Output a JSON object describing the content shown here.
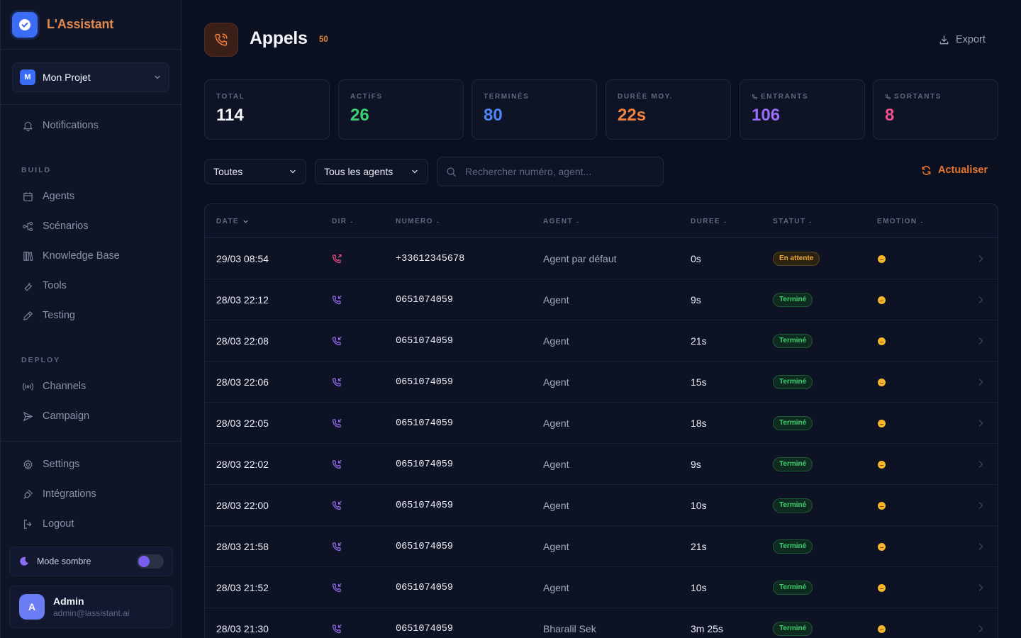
{
  "brand": {
    "name": "L'Assistant"
  },
  "project": {
    "badge": "M",
    "name": "Mon Projet"
  },
  "nav": {
    "notifications": "Notifications",
    "build_title": "BUILD",
    "build": [
      {
        "label": "Agents",
        "icon": "calendar-bot-icon"
      },
      {
        "label": "Scénarios",
        "icon": "flow-icon"
      },
      {
        "label": "Knowledge Base",
        "icon": "library-icon"
      },
      {
        "label": "Tools",
        "icon": "wrench-icon"
      },
      {
        "label": "Testing",
        "icon": "pencil-icon"
      }
    ],
    "deploy_title": "DEPLOY",
    "deploy": [
      {
        "label": "Channels",
        "icon": "broadcast-icon"
      },
      {
        "label": "Campaign",
        "icon": "send-icon"
      }
    ],
    "bottom": [
      {
        "label": "Settings",
        "icon": "gear-icon"
      },
      {
        "label": "Intégrations",
        "icon": "plug-icon"
      },
      {
        "label": "Logout",
        "icon": "logout-icon"
      }
    ]
  },
  "mode": {
    "label": "Mode sombre",
    "enabled": true
  },
  "user": {
    "initial": "A",
    "name": "Admin",
    "email": "admin@lassistant.ai"
  },
  "page": {
    "title": "Appels",
    "count": "50",
    "export_label": "Export"
  },
  "stats": [
    {
      "label": "TOTAL",
      "value": "114",
      "color": "#f4f6fb"
    },
    {
      "label": "ACTIFS",
      "value": "26",
      "color": "#3fcf73"
    },
    {
      "label": "TERMINÉS",
      "value": "80",
      "color": "#4f86f7"
    },
    {
      "label": "DURÉE MOY.",
      "value": "22s",
      "color": "#f0803a"
    },
    {
      "label": "ENTRANTS",
      "value": "106",
      "color": "#9b6cf5"
    },
    {
      "label": "SORTANTS",
      "value": "8",
      "color": "#f0508a"
    }
  ],
  "filters": {
    "status_value": "Toutes",
    "agent_value": "Tous les agents",
    "search_placeholder": "Rechercher numéro, agent...",
    "refresh_label": "Actualiser"
  },
  "table": {
    "columns": [
      "DATE",
      "DIR",
      "NUMERO",
      "AGENT",
      "DUREE",
      "STATUT",
      "EMOTION"
    ],
    "rows": [
      {
        "date": "29/03 08:54",
        "dir": "outgoing",
        "numero": "+33612345678",
        "agent": "Agent par défaut",
        "duree": "0s",
        "statut": "En attente",
        "emotion": "neutral"
      },
      {
        "date": "28/03 22:12",
        "dir": "incoming",
        "numero": "0651074059",
        "agent": "Agent",
        "duree": "9s",
        "statut": "Terminé",
        "emotion": "neutral"
      },
      {
        "date": "28/03 22:08",
        "dir": "incoming",
        "numero": "0651074059",
        "agent": "Agent",
        "duree": "21s",
        "statut": "Terminé",
        "emotion": "neutral"
      },
      {
        "date": "28/03 22:06",
        "dir": "incoming",
        "numero": "0651074059",
        "agent": "Agent",
        "duree": "15s",
        "statut": "Terminé",
        "emotion": "neutral"
      },
      {
        "date": "28/03 22:05",
        "dir": "incoming",
        "numero": "0651074059",
        "agent": "Agent",
        "duree": "18s",
        "statut": "Terminé",
        "emotion": "neutral"
      },
      {
        "date": "28/03 22:02",
        "dir": "incoming",
        "numero": "0651074059",
        "agent": "Agent",
        "duree": "9s",
        "statut": "Terminé",
        "emotion": "neutral"
      },
      {
        "date": "28/03 22:00",
        "dir": "incoming",
        "numero": "0651074059",
        "agent": "Agent",
        "duree": "10s",
        "statut": "Terminé",
        "emotion": "neutral"
      },
      {
        "date": "28/03 21:58",
        "dir": "incoming",
        "numero": "0651074059",
        "agent": "Agent",
        "duree": "21s",
        "statut": "Terminé",
        "emotion": "neutral"
      },
      {
        "date": "28/03 21:52",
        "dir": "incoming",
        "numero": "0651074059",
        "agent": "Agent",
        "duree": "10s",
        "statut": "Terminé",
        "emotion": "neutral"
      },
      {
        "date": "28/03 21:30",
        "dir": "incoming",
        "numero": "0651074059",
        "agent": "Bharalil Sek",
        "duree": "3m 25s",
        "statut": "Terminé",
        "emotion": "neutral"
      }
    ]
  },
  "colors": {
    "accent": "#e8762f",
    "brand": "#3b6cf5",
    "incoming": "#9b6cf5",
    "outgoing": "#f0508a"
  }
}
